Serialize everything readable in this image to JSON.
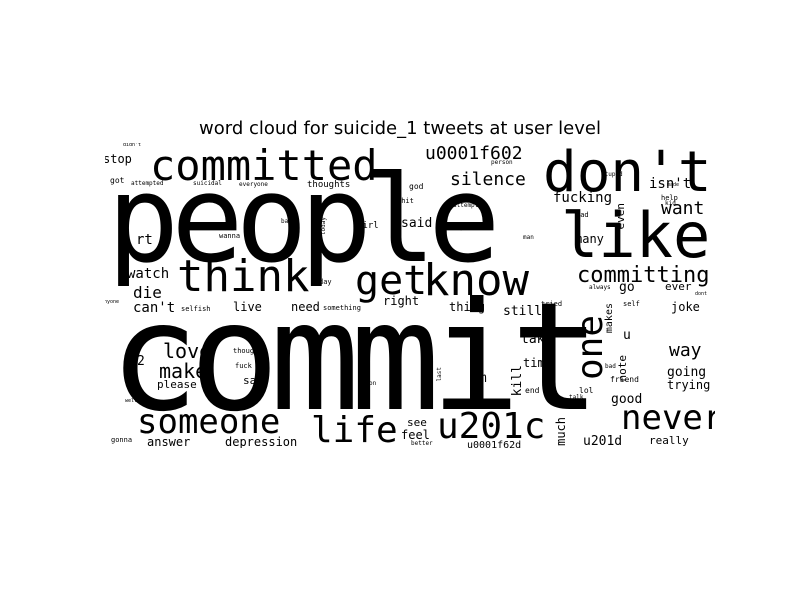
{
  "title": "word cloud for suicide_1 tweets at user level",
  "words": {
    "commit": "commit",
    "people": "people",
    "committed": "committed",
    "dont": "don't",
    "like": "like",
    "think": "think",
    "know": "know",
    "get": "get",
    "someone": "someone",
    "life": "life",
    "u201c": "u201c",
    "never": "never",
    "one": "one",
    "u0001f602": "u0001f602",
    "silence": "silence",
    "committing": "committing",
    "want": "want",
    "isnt": "isn't",
    "fucking": "fucking",
    "love": "love",
    "make": "make",
    "watch": "watch",
    "die": "die",
    "cant": "can't",
    "rt": "rt",
    "stop": "stop",
    "way": "way",
    "joke": "joke",
    "going": "going",
    "trying": "trying",
    "good": "good",
    "really": "really",
    "u201d": "u201d",
    "depression": "depression",
    "answer": "answer",
    "feel": "feel",
    "see": "see",
    "u0001f62d": "u0001f62d",
    "im": "im",
    "much": "much",
    "kill": "kill",
    "time": "time",
    "take": "take",
    "still": "still",
    "thing": "thing",
    "right": "right",
    "live": "live",
    "need": "need",
    "said": "said",
    "many": "many",
    "even": "even",
    "go": "go",
    "ever": "ever",
    "note": "note",
    "u": "u",
    "makes": "makes",
    "please": "please",
    "say": "say",
    "thoughts": "thoughts",
    "god": "god",
    "shit": "shit",
    "girl": "girl",
    "wanna": "wanna",
    "selfish": "selfish",
    "got": "got",
    "attempted": "attempted",
    "suicidal": "suicidal",
    "everyone": "everyone",
    "attempt": "attempt",
    "nope": "nope",
    "man": "man",
    "help": "help",
    "sad": "sad",
    "person": "person",
    "stupid": "stupid",
    "didnt": "didn't",
    "thought": "thought",
    "fuck": "fuck",
    "on": "on",
    "last": "last",
    "end": "end",
    "lol": "lol",
    "friend": "friend",
    "better": "better",
    "gonna": "gonna",
    "two": "2",
    "back": "back",
    "today": "today",
    "day": "day",
    "something": "something",
    "tried": "tried",
    "always": "always",
    "self": "self",
    "dont_small": "dont",
    "anyone": "anyone",
    "well": "well",
    "talk": "talk",
    "bad": "bad",
    "kid": "kid",
    "made": "made"
  }
}
